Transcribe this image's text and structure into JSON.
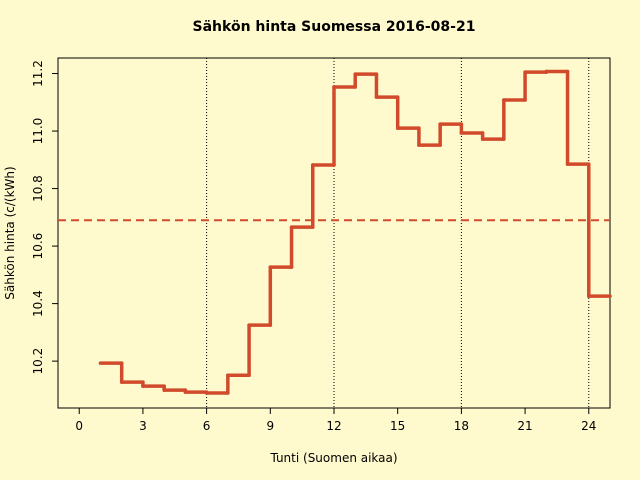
{
  "chart_data": {
    "type": "line",
    "step": true,
    "title": "Sähkön hinta Suomessa 2016-08-21",
    "x_label": "Tunti (Suomen aikaa)",
    "y_label": "Sähkön hinta (c/(kWh)",
    "x": [
      1,
      2,
      3,
      4,
      5,
      6,
      7,
      8,
      9,
      10,
      11,
      12,
      13,
      14,
      15,
      16,
      17,
      18,
      19,
      20,
      21,
      22,
      23,
      24
    ],
    "series": [
      {
        "color": "#d24a2c",
        "values": [
          10.193,
          10.127,
          10.113,
          10.099,
          10.092,
          10.089,
          10.151,
          10.325,
          10.527,
          10.666,
          10.882,
          11.153,
          11.198,
          11.118,
          11.01,
          10.951,
          11.024,
          10.993,
          10.972,
          11.108,
          11.205,
          11.207,
          10.885,
          10.426
        ]
      }
    ],
    "hline": {
      "value": 10.69,
      "color": "#d24a2c"
    },
    "vlines": [
      6,
      12,
      18,
      24
    ],
    "xlim": [
      -1,
      25
    ],
    "ylim": [
      10.037,
      11.254
    ],
    "xticks": [
      0,
      3,
      6,
      9,
      12,
      15,
      18,
      21,
      24
    ],
    "yticks": [
      10.2,
      10.4,
      10.6,
      10.8,
      {
        "value": 11,
        "label": "11.0"
      },
      11.2
    ],
    "background": "#fffacd"
  }
}
